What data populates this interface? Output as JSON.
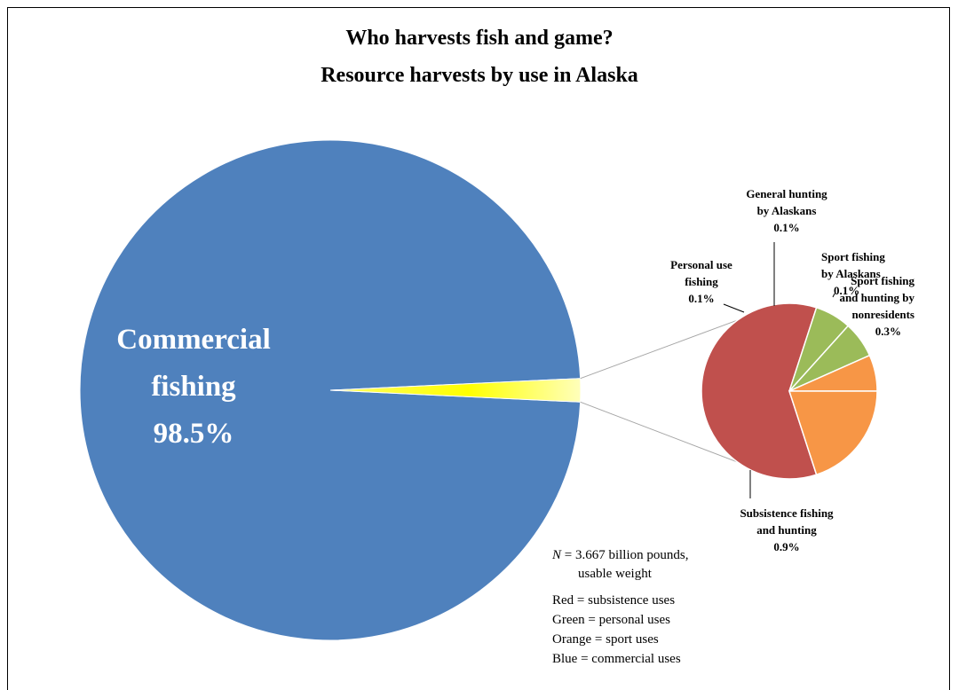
{
  "chart_data": {
    "type": "pie",
    "title": "Who harvests fish and game?",
    "subtitle": "Resource harvests by use in Alaska",
    "main_slice": {
      "label": [
        "Commercial",
        "fishing"
      ],
      "value_label": "98.5%",
      "value": 98.5,
      "color": "#4F81BD"
    },
    "other_slice": {
      "value": 1.5,
      "color": "#FFFF99"
    },
    "breakdown": [
      {
        "label": [
          "Subsistence fishing",
          "and hunting"
        ],
        "value_label": "0.9%",
        "value": 0.9,
        "color": "#C0504D"
      },
      {
        "label": [
          "Personal use",
          "fishing"
        ],
        "value_label": "0.1%",
        "value": 0.1,
        "color": "#9BBB59"
      },
      {
        "label": [
          "General hunting",
          "by Alaskans"
        ],
        "value_label": "0.1%",
        "value": 0.1,
        "color": "#9BBB59"
      },
      {
        "label": [
          "Sport fishing",
          "by Alaskans"
        ],
        "value_label": "0.1%",
        "value": 0.1,
        "color": "#F79646"
      },
      {
        "label": [
          "Sport fishing",
          "and hunting by",
          "nonresidents"
        ],
        "value_label": "0.3%",
        "value": 0.3,
        "color": "#F79646"
      }
    ],
    "notes": {
      "n_prefix": "N",
      "n_line1": " =  3.667 billion pounds,",
      "n_line2": "usable weight",
      "legend": [
        "Red = subsistence uses",
        "Green = personal uses",
        "Orange = sport uses",
        "Blue = commercial uses"
      ]
    }
  }
}
